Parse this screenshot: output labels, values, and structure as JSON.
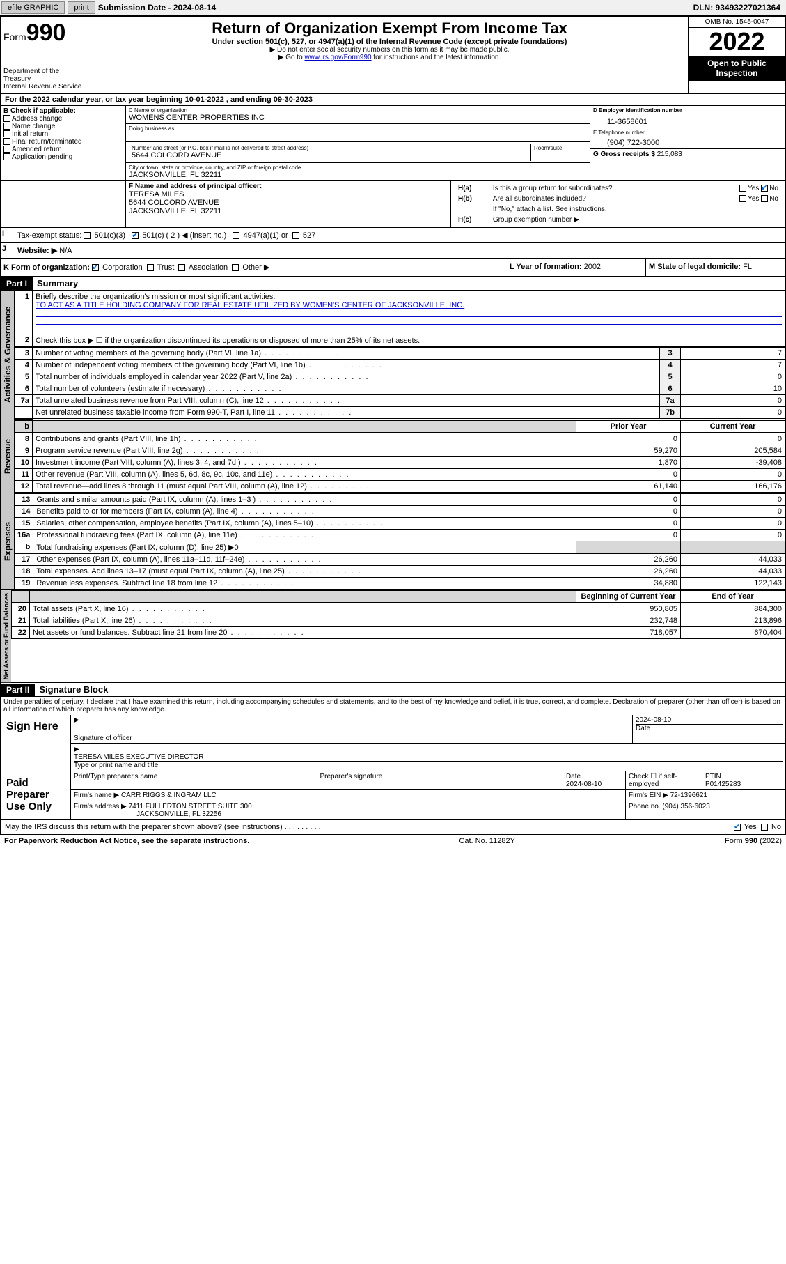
{
  "topbar": {
    "efile": "efile GRAPHIC",
    "print": "print",
    "subdate_label": "Submission Date - 2024-08-14",
    "dln": "DLN: 93493227021364"
  },
  "header": {
    "form_label": "Form",
    "form_num": "990",
    "dept": "Department of the Treasury",
    "irs": "Internal Revenue Service",
    "title": "Return of Organization Exempt From Income Tax",
    "sub": "Under section 501(c), 527, or 4947(a)(1) of the Internal Revenue Code (except private foundations)",
    "line1": "▶ Do not enter social security numbers on this form as it may be made public.",
    "line2_pre": "▶ Go to ",
    "line2_link": "www.irs.gov/Form990",
    "line2_post": " for instructions and the latest information.",
    "omb": "OMB No. 1545-0047",
    "year": "2022",
    "inspect": "Open to Public Inspection"
  },
  "period": "For the 2022 calendar year, or tax year beginning 10-01-2022   , and ending 09-30-2023",
  "boxB": {
    "label": "B Check if applicable:",
    "items": [
      "Address change",
      "Name change",
      "Initial return",
      "Final return/terminated",
      "Amended return",
      "Application pending"
    ]
  },
  "boxC": {
    "name_label": "C Name of organization",
    "name": "WOMENS CENTER PROPERTIES INC",
    "dba_label": "Doing business as",
    "addr_label": "Number and street (or P.O. box if mail is not delivered to street address)",
    "room_label": "Room/suite",
    "addr": "5644 COLCORD AVENUE",
    "city_label": "City or town, state or province, country, and ZIP or foreign postal code",
    "city": "JACKSONVILLE, FL  32211"
  },
  "boxD": {
    "label": "D Employer identification number",
    "val": "11-3658601"
  },
  "boxE": {
    "label": "E Telephone number",
    "val": "(904) 722-3000"
  },
  "boxG": {
    "label": "G Gross receipts $",
    "val": "215,083"
  },
  "boxF": {
    "label": "F Name and address of principal officer:",
    "name": "TERESA MILES",
    "addr1": "5644 COLCORD AVENUE",
    "addr2": "JACKSONVILLE, FL  32211"
  },
  "boxH": {
    "a": "Is this a group return for subordinates?",
    "b": "Are all subordinates included?",
    "b_note": "If \"No,\" attach a list. See instructions.",
    "c": "Group exemption number ▶"
  },
  "boxI": {
    "label": "Tax-exempt status:",
    "c3": "501(c)(3)",
    "c": "501(c) ( 2 ) ◀ (insert no.)",
    "a1": "4947(a)(1) or",
    "s527": "527"
  },
  "boxJ": {
    "label": "Website: ▶",
    "val": "N/A"
  },
  "boxK": {
    "label": "K Form of organization:",
    "corp": "Corporation",
    "trust": "Trust",
    "assoc": "Association",
    "other": "Other ▶"
  },
  "boxL": {
    "label": "L Year of formation:",
    "val": "2002"
  },
  "boxM": {
    "label": "M State of legal domicile:",
    "val": "FL"
  },
  "part1": {
    "hdr": "Part I",
    "title": "Summary",
    "q1": "Briefly describe the organization's mission or most significant activities:",
    "mission": "TO ACT AS A TITLE HOLDING COMPANY FOR REAL ESTATE UTILIZED BY WOMEN'S CENTER OF JACKSONVILLE, INC.",
    "q2": "Check this box ▶ ☐  if the organization discontinued its operations or disposed of more than 25% of its net assets.",
    "rows_gov": [
      {
        "n": "3",
        "d": "Number of voting members of the governing body (Part VI, line 1a)",
        "r": "3",
        "v": "7"
      },
      {
        "n": "4",
        "d": "Number of independent voting members of the governing body (Part VI, line 1b)",
        "r": "4",
        "v": "7"
      },
      {
        "n": "5",
        "d": "Total number of individuals employed in calendar year 2022 (Part V, line 2a)",
        "r": "5",
        "v": "0"
      },
      {
        "n": "6",
        "d": "Total number of volunteers (estimate if necessary)",
        "r": "6",
        "v": "10"
      },
      {
        "n": "7a",
        "d": "Total unrelated business revenue from Part VIII, column (C), line 12",
        "r": "7a",
        "v": "0"
      },
      {
        "n": "",
        "d": "Net unrelated business taxable income from Form 990-T, Part I, line 11",
        "r": "7b",
        "v": "0"
      }
    ],
    "col_prior": "Prior Year",
    "col_curr": "Current Year",
    "rows_rev": [
      {
        "n": "8",
        "d": "Contributions and grants (Part VIII, line 1h)",
        "p": "0",
        "c": "0"
      },
      {
        "n": "9",
        "d": "Program service revenue (Part VIII, line 2g)",
        "p": "59,270",
        "c": "205,584"
      },
      {
        "n": "10",
        "d": "Investment income (Part VIII, column (A), lines 3, 4, and 7d )",
        "p": "1,870",
        "c": "-39,408"
      },
      {
        "n": "11",
        "d": "Other revenue (Part VIII, column (A), lines 5, 6d, 8c, 9c, 10c, and 11e)",
        "p": "0",
        "c": "0"
      },
      {
        "n": "12",
        "d": "Total revenue—add lines 8 through 11 (must equal Part VIII, column (A), line 12)",
        "p": "61,140",
        "c": "166,176"
      }
    ],
    "rows_exp": [
      {
        "n": "13",
        "d": "Grants and similar amounts paid (Part IX, column (A), lines 1–3 )",
        "p": "0",
        "c": "0"
      },
      {
        "n": "14",
        "d": "Benefits paid to or for members (Part IX, column (A), line 4)",
        "p": "0",
        "c": "0"
      },
      {
        "n": "15",
        "d": "Salaries, other compensation, employee benefits (Part IX, column (A), lines 5–10)",
        "p": "0",
        "c": "0"
      },
      {
        "n": "16a",
        "d": "Professional fundraising fees (Part IX, column (A), line 11e)",
        "p": "0",
        "c": "0"
      },
      {
        "n": "b",
        "d": "Total fundraising expenses (Part IX, column (D), line 25) ▶0",
        "p": "",
        "c": "",
        "shade": true
      },
      {
        "n": "17",
        "d": "Other expenses (Part IX, column (A), lines 11a–11d, 11f–24e)",
        "p": "26,260",
        "c": "44,033"
      },
      {
        "n": "18",
        "d": "Total expenses. Add lines 13–17 (must equal Part IX, column (A), line 25)",
        "p": "26,260",
        "c": "44,033"
      },
      {
        "n": "19",
        "d": "Revenue less expenses. Subtract line 18 from line 12",
        "p": "34,880",
        "c": "122,143"
      }
    ],
    "col_begin": "Beginning of Current Year",
    "col_end": "End of Year",
    "rows_net": [
      {
        "n": "20",
        "d": "Total assets (Part X, line 16)",
        "p": "950,805",
        "c": "884,300"
      },
      {
        "n": "21",
        "d": "Total liabilities (Part X, line 26)",
        "p": "232,748",
        "c": "213,896"
      },
      {
        "n": "22",
        "d": "Net assets or fund balances. Subtract line 21 from line 20",
        "p": "718,057",
        "c": "670,404"
      }
    ],
    "vtab_gov": "Activities & Governance",
    "vtab_rev": "Revenue",
    "vtab_exp": "Expenses",
    "vtab_net": "Net Assets or Fund Balances"
  },
  "part2": {
    "hdr": "Part II",
    "title": "Signature Block",
    "decl": "Under penalties of perjury, I declare that I have examined this return, including accompanying schedules and statements, and to the best of my knowledge and belief, it is true, correct, and complete. Declaration of preparer (other than officer) is based on all information of which preparer has any knowledge.",
    "sign_here": "Sign Here",
    "sig_officer": "Signature of officer",
    "sig_date": "Date",
    "sig_date_val": "2024-08-10",
    "sig_name": "TERESA MILES  EXECUTIVE DIRECTOR",
    "sig_name_label": "Type or print name and title",
    "paid": "Paid Preparer Use Only",
    "prep_name_label": "Print/Type preparer's name",
    "prep_sig_label": "Preparer's signature",
    "prep_date_label": "Date",
    "prep_date": "2024-08-10",
    "prep_check": "Check ☐ if self-employed",
    "ptin_label": "PTIN",
    "ptin": "P01425283",
    "firm_name_label": "Firm's name    ▶",
    "firm_name": "CARR RIGGS & INGRAM LLC",
    "firm_ein_label": "Firm's EIN ▶",
    "firm_ein": "72-1396621",
    "firm_addr_label": "Firm's address ▶",
    "firm_addr1": "7411 FULLERTON STREET SUITE 300",
    "firm_addr2": "JACKSONVILLE, FL  32256",
    "firm_phone_label": "Phone no.",
    "firm_phone": "(904) 356-6023",
    "discuss": "May the IRS discuss this return with the preparer shown above? (see instructions)",
    "yes": "Yes",
    "no": "No"
  },
  "footer": {
    "pra": "For Paperwork Reduction Act Notice, see the separate instructions.",
    "cat": "Cat. No. 11282Y",
    "form": "Form 990 (2022)"
  }
}
